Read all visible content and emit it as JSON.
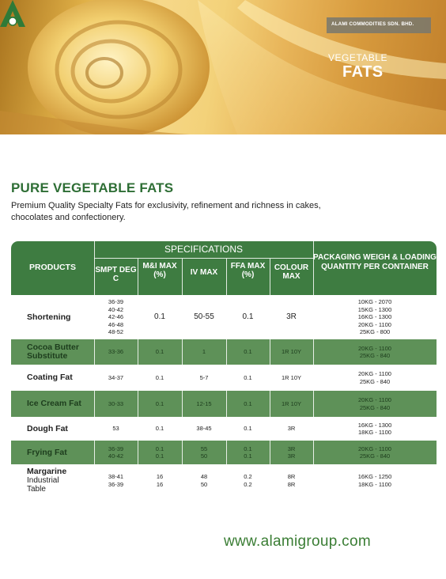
{
  "hero": {
    "brand": "ALAMI COMMODITIES SDN. BHD.",
    "subtitle": "VEGETABLE",
    "title": "FATS"
  },
  "heading": "PURE VEGETABLE FATS",
  "intro": "Premium Quality Specialty Fats for exclusivity, refinement and richness in cakes, chocolates and confectionery.",
  "table": {
    "products_header": "PRODUCTS",
    "specs_header": "SPECIFICATIONS",
    "packaging_header": "PACKAGING WEIGH & LOADING QUANTITY PER CONTAINER",
    "columns": [
      "SMPT DEG C",
      "M&I MAX (%)",
      "IV MAX",
      "FFA MAX (%)",
      "COLOUR MAX"
    ],
    "rows": [
      {
        "name": "Shortening",
        "smpt": "36-39\n40-42\n42-46\n46-48\n48-52",
        "mi": "0.1",
        "iv": "50-55",
        "ffa": "0.1",
        "colour": "3R",
        "pack": "10KG - 2070\n15KG - 1300\n16KG - 1300\n20KG - 1100\n25KG - 800"
      },
      {
        "name": "Cocoa Butter\nSubstitute",
        "smpt": "33-36",
        "mi": "0.1",
        "iv": "1",
        "ffa": "0.1",
        "colour": "1R 10Y",
        "pack": "20KG - 1100\n25KG - 840"
      },
      {
        "name": "Coating Fat",
        "smpt": "34-37",
        "mi": "0.1",
        "iv": "5-7",
        "ffa": "0.1",
        "colour": "1R 10Y",
        "pack": "20KG - 1100\n25KG - 840"
      },
      {
        "name": "Ice Cream Fat",
        "smpt": "30-33",
        "mi": "0.1",
        "iv": "12-15",
        "ffa": "0.1",
        "colour": "1R 10Y",
        "pack": "20KG - 1100\n25KG - 840"
      },
      {
        "name": "Dough Fat",
        "smpt": "53",
        "mi": "0.1",
        "iv": "38-45",
        "ffa": "0.1",
        "colour": "3R",
        "pack": "16KG - 1300\n18KG - 1100"
      },
      {
        "name": "Frying Fat",
        "smpt": "36-39\n40-42",
        "mi": "0.1\n0.1",
        "iv": "55\n50",
        "ffa": "0.1\n0.1",
        "colour": "3R\n3R",
        "pack": "20KG - 1100\n25KG - 840"
      },
      {
        "name": "Margarine",
        "name_sub": "Industrial\nTable",
        "smpt": "38-41\n36-39",
        "mi": "16\n16",
        "iv": "48\n50",
        "ffa": "0.2\n0.2",
        "colour": "8R\n8R",
        "pack": "16KG - 1250\n18KG - 1100"
      }
    ]
  },
  "website": "www.alamigroup.com",
  "colors": {
    "green_dark": "#3e7c41",
    "green_row": "#5e9158",
    "heading_green": "#2e6e35"
  }
}
